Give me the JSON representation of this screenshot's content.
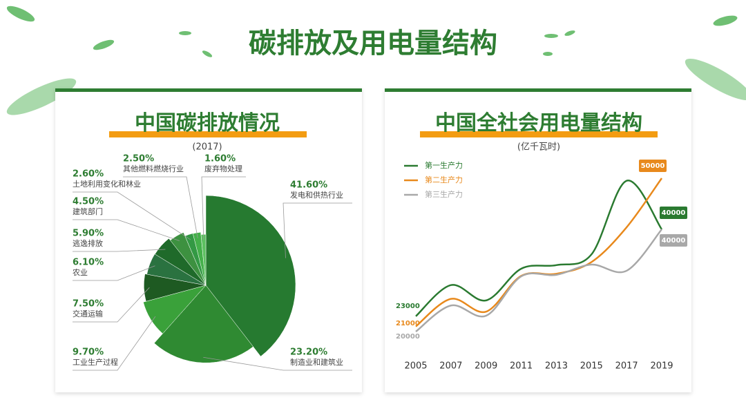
{
  "title": "碳排放及用电量结构",
  "chart_data": [
    {
      "type": "pie",
      "title": "中国碳排放情况",
      "subtitle": "(2017)",
      "categories": [
        "发电和供热行业",
        "制造业和建筑业",
        "工业生产过程",
        "交通运输",
        "农业",
        "逃逸排放",
        "建筑部门",
        "土地利用变化和林业",
        "其他燃料燃烧行业",
        "废弃物处理"
      ],
      "values": [
        41.6,
        23.2,
        9.7,
        7.5,
        6.1,
        5.9,
        4.5,
        2.6,
        2.5,
        1.6
      ],
      "value_labels": [
        "41.60%",
        "23.20%",
        "9.70%",
        "7.50%",
        "6.10%",
        "5.90%",
        "4.50%",
        "2.60%",
        "2.50%",
        "1.60%"
      ],
      "colors": [
        "#267a30",
        "#2f8a32",
        "#3aa13a",
        "#1e5a22",
        "#2a7240",
        "#1f6a2a",
        "#3d9140",
        "#339944",
        "#44b04a",
        "#5cc060"
      ]
    },
    {
      "type": "line",
      "title": "中国全社会用电量结构",
      "subtitle": "(亿千瓦时)",
      "categories": [
        "2005",
        "2007",
        "2009",
        "2011",
        "2013",
        "2015",
        "2017",
        "2019"
      ],
      "series": [
        {
          "name": "第一生产力",
          "color": "#2a7a30",
          "values": [
            23000,
            29100,
            26100,
            32300,
            33000,
            35100,
            49500,
            40000
          ]
        },
        {
          "name": "第二生产力",
          "color": "#e8891c",
          "values": [
            21000,
            26400,
            23900,
            30900,
            31300,
            33600,
            40400,
            50000
          ]
        },
        {
          "name": "第三生产力",
          "color": "#a8a8a8",
          "values": [
            20000,
            25100,
            23100,
            30800,
            31100,
            33100,
            31900,
            40000
          ]
        }
      ],
      "legend": "top-left"
    }
  ]
}
